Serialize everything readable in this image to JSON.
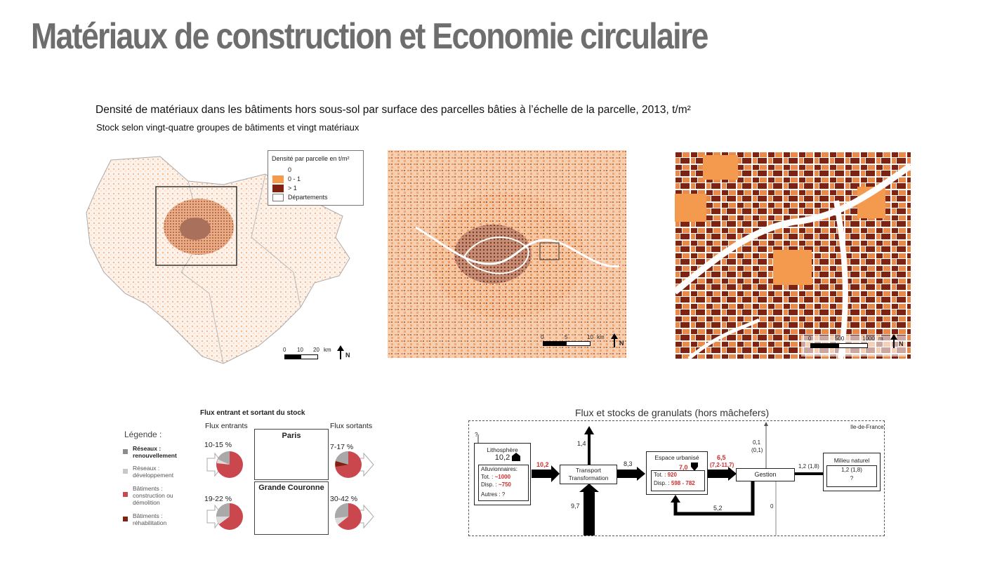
{
  "page": {
    "title": "Matériaux de construction et Economie circulaire",
    "subtitle": "Densité de matériaux dans les bâtiments hors sous-sol par surface des parcelles bâties à l’échelle de la parcelle, 2013, t/m²",
    "subtitle2": "Stock selon vingt-quatre groupes de bâtiments  et vingt matériaux"
  },
  "colors": {
    "zero": "#ffffff",
    "low": "#f39a4e",
    "high": "#7f2212",
    "title_gray": "#6e6e6e",
    "red": "#c9474d",
    "gray": "#a9a9a9"
  },
  "map_legend": {
    "title": "Densité par parcelle en t/m²",
    "items": [
      {
        "label": "0",
        "color": "#ffffff"
      },
      {
        "label": "0 - 1",
        "color": "#f39a4e"
      },
      {
        "label": "> 1",
        "color": "#7f2212"
      },
      {
        "label": "Départements",
        "color": "#ffffff"
      }
    ]
  },
  "map1": {
    "scale": {
      "t0": "0",
      "t1": "10",
      "t2": "20",
      "unit": "km"
    },
    "north": "N"
  },
  "map2": {
    "scale": {
      "t0": "0",
      "t1": "5",
      "t2": "10",
      "unit": "km"
    },
    "north": "N"
  },
  "map3": {
    "scale": {
      "t0": "0",
      "t1": "500",
      "t2": "1000",
      "unit": "m"
    },
    "north": "N"
  },
  "flux_stock": {
    "title": "Flux entrant et sortant du stock",
    "in_label": "Flux entrants",
    "out_label": "Flux sortants",
    "legend_title": "Légende :",
    "legend": [
      {
        "l1": "Réseaux :",
        "l2": "renouvellement",
        "l3": "",
        "color": "#8c8c8c",
        "bold": true
      },
      {
        "l1": "Réseaux :",
        "l2": "développement",
        "l3": "",
        "color": "#c8c8c8",
        "bold": false
      },
      {
        "l1": "Bâtiments :",
        "l2": "construction ou",
        "l3": "démolition",
        "color": "#c9474d",
        "bold": false
      },
      {
        "l1": "Bâtiments :",
        "l2": "réhabilitation",
        "l3": "",
        "color": "#7f2212",
        "bold": false
      }
    ],
    "regions": [
      {
        "name": "Paris",
        "in": "10-15 %",
        "out": "7-17 %"
      },
      {
        "name": "Grande Couronne",
        "in": "19-22 %",
        "out": "30-42 %"
      }
    ]
  },
  "granulats": {
    "title": "Flux et stocks de granulats (hors mâchefers)",
    "region": "Ile-de-France",
    "q": "?",
    "litho": {
      "name": "Lithosphère",
      "val": "10,2",
      "l1": "Alluvionnaires:",
      "tot_label": "Tot. :",
      "tot": "~1000",
      "disp_label": "Disp. :",
      "disp": "~750",
      "autres": "Autres : ?"
    },
    "flow_litho_transport": "10,2",
    "transport": {
      "l1": "Transport",
      "l2": "Transformation"
    },
    "flow_top": "1,4",
    "flow_bottom": "9,7",
    "flow_transport_espace": "8,3",
    "espace": {
      "name": "Espace urbanisé",
      "val": "7,0",
      "tot_label": "Tot. :",
      "tot": "920",
      "disp_label": "Disp. :",
      "disp": "598 - 782"
    },
    "flow_espace_gestion": "6,5",
    "flow_espace_gestion2": "(7,2-11,7)",
    "flow_return": "5,2",
    "gestion": "Gestion",
    "flow_up": "0,1",
    "flow_up2": "(0,1)",
    "flow_down": "0",
    "flow_milieu": "1,2 (1,8)",
    "milieu": {
      "name": "Milieu naturel",
      "val": "1,2 (1,8)",
      "q": "?"
    }
  }
}
